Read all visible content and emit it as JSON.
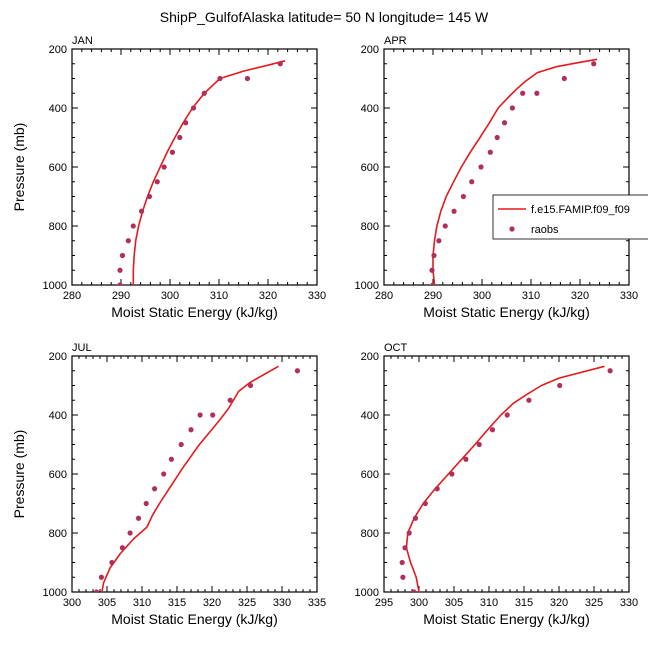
{
  "title": "ShipP_GulfofAlaska  latitude= 50 N longitude= 145 W",
  "colors": {
    "model": "#e41a1c",
    "obs": "#b0305c",
    "axis": "#000000"
  },
  "legend": {
    "model_label": "f.e15.FAMIP.f09_f09",
    "obs_label": "raobs"
  },
  "chart_data": [
    {
      "type": "line",
      "panel": "JAN",
      "xlabel": "Moist Static Energy (kJ/kg)",
      "ylabel": "Pressure (mb)",
      "xlim": [
        280,
        330
      ],
      "ylim": [
        1000,
        200
      ],
      "y_reversed": true,
      "xticks": [
        280,
        290,
        300,
        310,
        320,
        330
      ],
      "yticks": [
        200,
        400,
        600,
        800,
        1000
      ],
      "series": [
        {
          "name": "f.e15.FAMIP.f09_f09",
          "style": "line",
          "x": [
            292.5,
            292.5,
            292.7,
            293.0,
            293.6,
            294.4,
            295.4,
            296.6,
            298.0,
            299.4,
            301.0,
            302.7,
            304.6,
            307.0,
            310.2,
            315.0,
            320.0,
            323.5
          ],
          "y": [
            1000,
            950,
            900,
            850,
            800,
            750,
            700,
            650,
            600,
            550,
            500,
            450,
            400,
            350,
            300,
            275,
            255,
            240
          ]
        },
        {
          "name": "raobs",
          "style": "points",
          "x": [
            289.8,
            289.8,
            290.3,
            291.5,
            292.5,
            294.2,
            295.8,
            297.4,
            298.8,
            300.5,
            302.0,
            303.2,
            304.8,
            307.0,
            310.2,
            315.8,
            322.5
          ],
          "y": [
            1000,
            950,
            900,
            850,
            800,
            750,
            700,
            650,
            600,
            550,
            500,
            450,
            400,
            350,
            300,
            300,
            250
          ]
        }
      ]
    },
    {
      "type": "line",
      "panel": "APR",
      "xlabel": "Moist Static Energy (kJ/kg)",
      "ylabel": "",
      "xlim": [
        280,
        330
      ],
      "ylim": [
        1000,
        200
      ],
      "y_reversed": true,
      "xticks": [
        280,
        290,
        300,
        310,
        320,
        330
      ],
      "yticks": [
        200,
        400,
        600,
        800,
        1000
      ],
      "series": [
        {
          "name": "f.e15.FAMIP.f09_f09",
          "style": "line",
          "x": [
            290.3,
            290.0,
            290.0,
            290.3,
            290.8,
            291.6,
            292.7,
            294.2,
            295.8,
            297.6,
            299.6,
            301.5,
            303.3,
            305.0,
            306.8,
            308.8,
            311.3,
            315.2,
            320.0,
            323.5
          ],
          "y": [
            1000,
            950,
            900,
            850,
            800,
            750,
            700,
            650,
            600,
            550,
            500,
            450,
            400,
            370,
            340,
            310,
            280,
            260,
            245,
            235
          ]
        },
        {
          "name": "raobs",
          "style": "points",
          "x": [
            290.0,
            289.8,
            290.2,
            291.2,
            292.5,
            294.3,
            296.2,
            297.9,
            299.8,
            301.7,
            303.1,
            304.6,
            306.2,
            308.3,
            311.2,
            316.8,
            322.8
          ],
          "y": [
            1000,
            950,
            900,
            850,
            800,
            750,
            700,
            650,
            600,
            550,
            500,
            450,
            400,
            350,
            350,
            300,
            250
          ]
        }
      ]
    },
    {
      "type": "line",
      "panel": "JUL",
      "xlabel": "Moist Static Energy (kJ/kg)",
      "ylabel": "Pressure (mb)",
      "xlim": [
        300,
        335
      ],
      "ylim": [
        1000,
        200
      ],
      "y_reversed": true,
      "xticks": [
        300,
        305,
        310,
        315,
        320,
        325,
        330,
        335
      ],
      "yticks": [
        200,
        400,
        600,
        800,
        1000
      ],
      "series": [
        {
          "name": "f.e15.FAMIP.f09_f09",
          "style": "line",
          "x": [
            304.2,
            304.5,
            305.4,
            306.9,
            308.8,
            310.7,
            311.5,
            312.5,
            313.6,
            314.7,
            315.8,
            317.0,
            318.2,
            319.6,
            321.0,
            322.3,
            323.8,
            325.4,
            329.5
          ],
          "y": [
            1010,
            970,
            920,
            870,
            820,
            780,
            740,
            700,
            660,
            620,
            580,
            540,
            500,
            460,
            420,
            380,
            320,
            290,
            235
          ]
        },
        {
          "name": "raobs",
          "style": "points",
          "x": [
            303.5,
            304.2,
            305.7,
            307.2,
            308.3,
            309.5,
            310.6,
            311.8,
            313.1,
            314.2,
            315.6,
            317.0,
            318.3,
            320.1,
            322.6,
            325.5,
            332.2
          ],
          "y": [
            1000,
            950,
            900,
            850,
            800,
            750,
            700,
            650,
            600,
            550,
            500,
            450,
            400,
            400,
            350,
            300,
            250
          ]
        }
      ]
    },
    {
      "type": "line",
      "panel": "OCT",
      "xlabel": "Moist Static Energy (kJ/kg)",
      "ylabel": "",
      "xlim": [
        295,
        330
      ],
      "ylim": [
        1000,
        200
      ],
      "y_reversed": true,
      "xticks": [
        295,
        300,
        305,
        310,
        315,
        320,
        325,
        330
      ],
      "yticks": [
        200,
        400,
        600,
        800,
        1000
      ],
      "series": [
        {
          "name": "f.e15.FAMIP.f09_f09",
          "style": "line",
          "x": [
            300.0,
            299.6,
            298.8,
            298.2,
            298.4,
            299.3,
            300.6,
            302.3,
            304.2,
            306.1,
            308.0,
            309.8,
            311.7,
            313.5,
            315.4,
            317.5,
            320.0,
            326.5
          ],
          "y": [
            1000,
            950,
            900,
            850,
            800,
            750,
            700,
            650,
            600,
            550,
            500,
            450,
            400,
            360,
            330,
            300,
            275,
            235
          ]
        },
        {
          "name": "raobs",
          "style": "points",
          "x": [
            299.3,
            297.7,
            297.6,
            298.0,
            298.6,
            299.5,
            300.9,
            302.6,
            304.7,
            306.7,
            308.6,
            310.5,
            312.6,
            315.7,
            320.1,
            327.3
          ],
          "y": [
            1000,
            950,
            900,
            850,
            800,
            750,
            700,
            650,
            600,
            550,
            500,
            450,
            400,
            350,
            300,
            250
          ]
        }
      ]
    }
  ]
}
